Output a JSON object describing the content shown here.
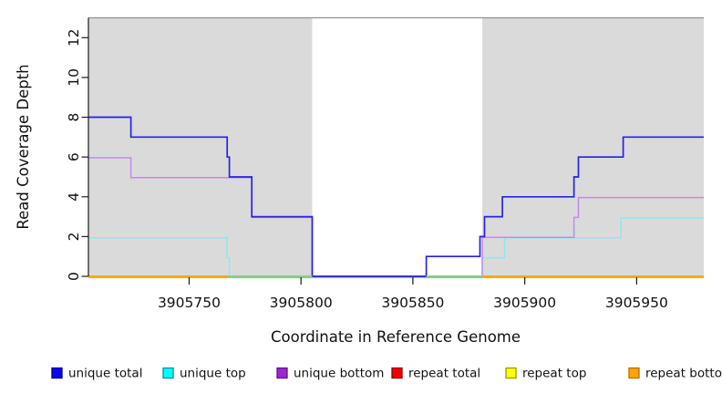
{
  "chart_data": {
    "type": "line",
    "style": "step-after",
    "title": "",
    "xlabel": "Coordinate in Reference Genome",
    "ylabel": "Read Coverage Depth",
    "xlim": [
      3905705,
      3905980
    ],
    "ylim": [
      0,
      13
    ],
    "grid": false,
    "x_ticks": [
      3905750,
      3905800,
      3905850,
      3905900,
      3905950
    ],
    "x_tick_labels": [
      "3905750",
      "3905800",
      "3905850",
      "3905900",
      "3905950"
    ],
    "y_ticks": [
      0,
      2,
      4,
      6,
      8,
      10,
      12
    ],
    "y_tick_labels": [
      "0",
      "2",
      "4",
      "6",
      "8",
      "10",
      "12"
    ],
    "shaded_regions": [
      {
        "x0": 3905705,
        "x1": 3905805,
        "color": "#DADADA",
        "name": "left-gray-region"
      },
      {
        "x0": 3905881,
        "x1": 3905980,
        "color": "#DADADA",
        "name": "right-gray-region"
      }
    ],
    "series": [
      {
        "name": "unique total",
        "color": "#2822DF",
        "steps": [
          [
            3905705,
            8
          ],
          [
            3905724,
            7
          ],
          [
            3905767,
            6
          ],
          [
            3905768,
            5
          ],
          [
            3905778,
            3
          ],
          [
            3905805,
            0
          ],
          [
            3905856,
            1
          ],
          [
            3905880,
            2
          ],
          [
            3905882,
            3
          ],
          [
            3905890,
            4
          ],
          [
            3905922,
            5
          ],
          [
            3905924,
            6
          ],
          [
            3905944,
            7
          ]
        ]
      },
      {
        "name": "unique top",
        "color": "#8CE9EE",
        "steps": [
          [
            3905705,
            2
          ],
          [
            3905767,
            1
          ],
          [
            3905768,
            0
          ],
          [
            3905881,
            1
          ],
          [
            3905891,
            2
          ],
          [
            3905943,
            3
          ]
        ]
      },
      {
        "name": "unique bottom",
        "color": "#C18BE8",
        "steps": [
          [
            3905705,
            6
          ],
          [
            3905724,
            5
          ],
          [
            3905778,
            3
          ],
          [
            3905805,
            0
          ],
          [
            3905881,
            2
          ],
          [
            3905922,
            3
          ],
          [
            3905924,
            4
          ]
        ]
      },
      {
        "name": "repeat total",
        "color": "#E00000",
        "steps": [
          [
            3905705,
            0
          ]
        ]
      },
      {
        "name": "repeat top",
        "color": "#FFFF00",
        "steps": [
          [
            3905705,
            0
          ]
        ]
      },
      {
        "name": "repeat bottom",
        "color": "#FFA513",
        "steps": [
          [
            3905705,
            0
          ]
        ]
      }
    ],
    "baseline_overlap_segments": [
      {
        "x0": 3905705,
        "x1": 3905767,
        "color": "#FFA513"
      },
      {
        "x0": 3905767,
        "x1": 3905805,
        "color": "#8CC98C"
      },
      {
        "x0": 3905856,
        "x1": 3905881,
        "color": "#8CC98C"
      },
      {
        "x0": 3905881,
        "x1": 3905980,
        "color": "#FFA513"
      }
    ],
    "legend_position": "bottom"
  },
  "legend": {
    "items": [
      {
        "label": "unique total",
        "fill": "#0808F0",
        "border": "#000090"
      },
      {
        "label": "unique top",
        "fill": "#00FFFF",
        "border": "#0090A8"
      },
      {
        "label": "unique bottom",
        "fill": "#9C27CE",
        "border": "#5E1580"
      },
      {
        "label": "repeat total",
        "fill": "#F00000",
        "border": "#8B0000"
      },
      {
        "label": "repeat top",
        "fill": "#FFFF00",
        "border": "#9B9B00"
      },
      {
        "label": "repeat bottom",
        "fill": "#FFA500",
        "border": "#B86E00"
      }
    ]
  },
  "colors": {
    "plot_background": "#FFFFFF",
    "shaded_region": "#DADADA",
    "axis_line": "#1a1a1a",
    "plot_top_border": "#909090"
  }
}
